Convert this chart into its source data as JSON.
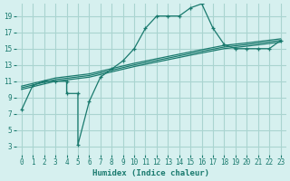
{
  "title": "",
  "xlabel": "Humidex (Indice chaleur)",
  "ylabel": "",
  "bg_color": "#d6f0ef",
  "line_color": "#1a7a6e",
  "grid_color": "#aad4d0",
  "xlim": [
    -0.5,
    23.5
  ],
  "ylim": [
    2,
    20.5
  ],
  "xticks": [
    0,
    1,
    2,
    3,
    4,
    5,
    6,
    7,
    8,
    9,
    10,
    11,
    12,
    13,
    14,
    15,
    16,
    17,
    18,
    19,
    20,
    21,
    22,
    23
  ],
  "yticks": [
    3,
    5,
    7,
    9,
    11,
    13,
    15,
    17,
    19
  ],
  "series1_x": [
    0,
    1,
    2,
    3,
    4,
    4,
    5,
    5,
    6,
    7,
    8,
    9,
    10,
    11,
    12,
    13,
    14,
    15,
    16,
    17,
    18,
    19,
    20,
    21,
    22,
    23
  ],
  "series1_y": [
    7.5,
    10.5,
    11.0,
    11.0,
    11.0,
    9.5,
    9.5,
    3.2,
    8.5,
    11.5,
    12.5,
    13.5,
    15.0,
    17.5,
    19.0,
    19.0,
    19.0,
    20.0,
    20.5,
    17.5,
    15.5,
    15.0,
    15.0,
    15.0,
    15.0,
    16.0
  ],
  "series2_x": [
    0,
    3,
    6,
    10,
    15,
    18,
    20,
    23
  ],
  "series2_y": [
    10.0,
    11.0,
    11.5,
    12.8,
    14.2,
    15.0,
    15.3,
    15.8
  ],
  "series3_x": [
    0,
    3,
    6,
    10,
    15,
    18,
    20,
    23
  ],
  "series3_y": [
    10.2,
    11.2,
    11.7,
    13.0,
    14.4,
    15.2,
    15.5,
    16.0
  ],
  "series4_x": [
    0,
    3,
    6,
    10,
    15,
    18,
    20,
    23
  ],
  "series4_y": [
    10.4,
    11.4,
    11.9,
    13.2,
    14.6,
    15.4,
    15.7,
    16.2
  ]
}
